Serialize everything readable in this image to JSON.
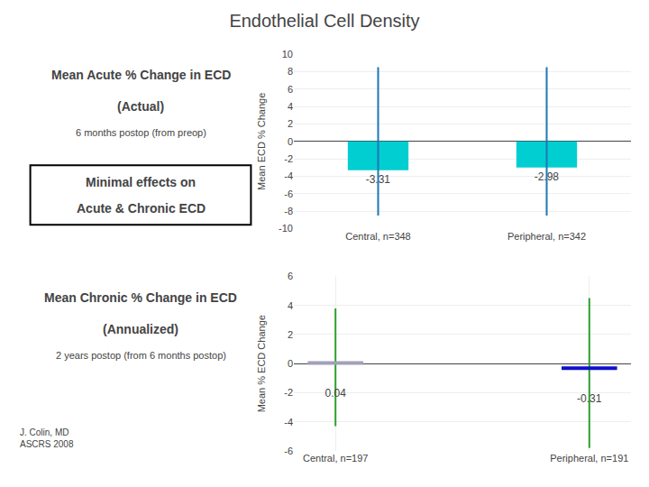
{
  "title": "Endothelial Cell Density",
  "footer": "J. Colin, MD\nASCRS 2008",
  "annotations": [
    "Minimal effects on",
    "Acute & Chronic ECD"
  ],
  "chart_data": [
    {
      "type": "bar",
      "title": "Mean Acute % Change in ECD",
      "subtitle": "(Actual)",
      "annotations": [
        "6 months postop (from preop)"
      ],
      "ylabel": "Mean ECD % Change",
      "categories": [
        "Central, n=348",
        "Peripheral, n=342"
      ],
      "values": [
        -3.31,
        -2.98
      ],
      "color": "#00CED1",
      "data_labels": true,
      "whisker_low": [
        -8.5,
        -8.5
      ],
      "whisker_high": [
        8.5,
        8.5
      ],
      "ylim": [
        -10,
        10
      ],
      "yticks": [
        -10,
        -8,
        -6,
        -4,
        -2,
        0,
        2,
        4,
        6,
        8,
        10
      ],
      "grid": true
    },
    {
      "type": "scatter",
      "title": "Mean Chronic % Change in ECD",
      "subtitle": "(Annualized)",
      "annotations": [
        "2 years postop (from 6 months postop)"
      ],
      "ylabel": "Mean % ECD Change",
      "categories": [
        "Central, n=197",
        "Peripheral, n=191"
      ],
      "values": [
        0.04,
        -0.31
      ],
      "colors": [
        "#A0A0B8",
        "#1010CC"
      ],
      "marker": "line-ew",
      "data_labels": true,
      "whisker_low": [
        -4.3,
        -5.8
      ],
      "whisker_high": [
        3.8,
        4.5
      ],
      "ylim": [
        -6,
        6
      ],
      "yticks": [
        -6,
        -4,
        -2,
        0,
        2,
        4,
        6
      ],
      "grid": true
    }
  ]
}
